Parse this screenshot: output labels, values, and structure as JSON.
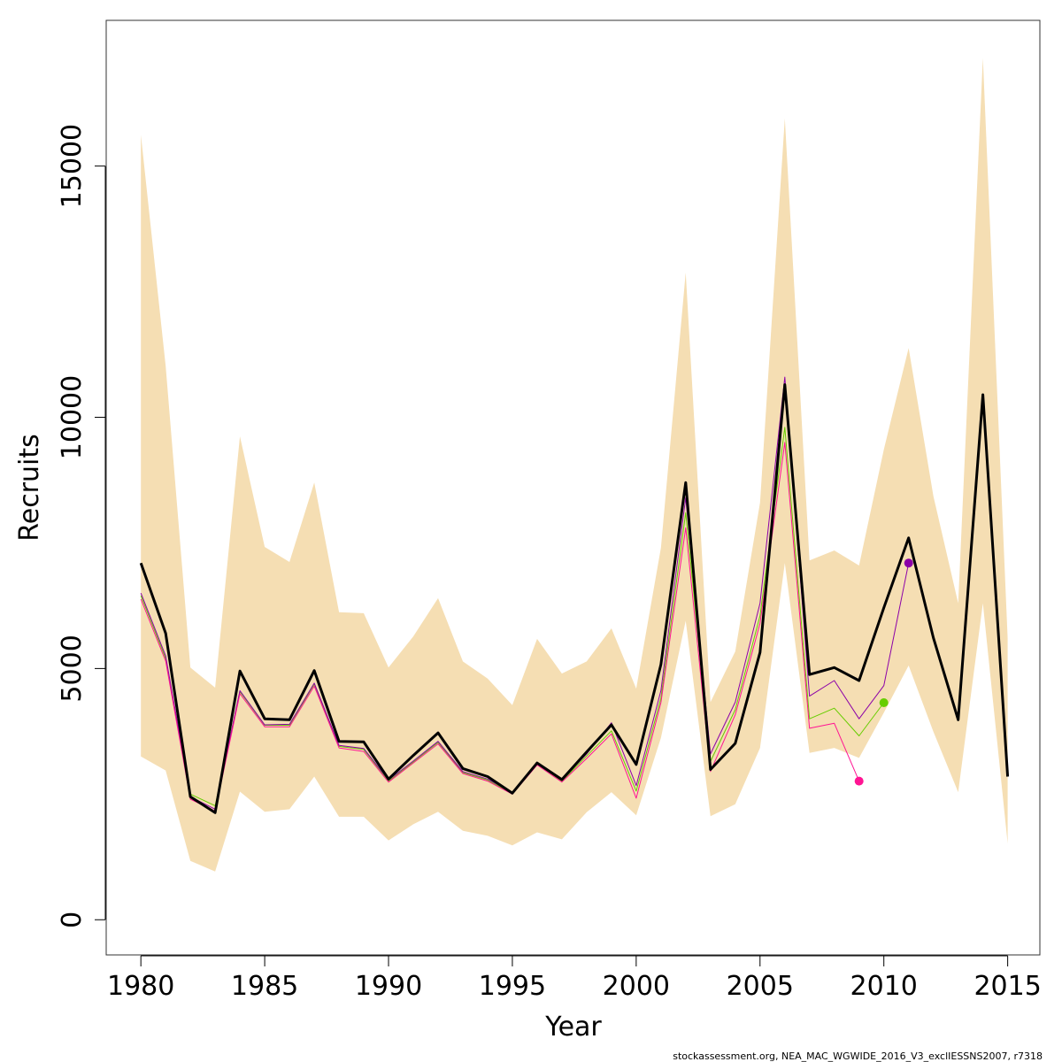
{
  "chart_data": {
    "type": "line",
    "xlabel": "Year",
    "ylabel": "Recruits",
    "xlim": [
      1978.6,
      2016.3
    ],
    "ylim": [
      -700,
      17900
    ],
    "x_ticks": [
      1980,
      1985,
      1990,
      1995,
      2000,
      2005,
      2010,
      2015
    ],
    "x_tick_labels": [
      "1980",
      "1985",
      "1990",
      "1995",
      "2000",
      "2005",
      "2010",
      "2015"
    ],
    "y_ticks": [
      0,
      5000,
      10000,
      15000
    ],
    "y_tick_labels": [
      "0",
      "5000",
      "10000",
      "15000"
    ],
    "colors": {
      "band": "#f5deb3",
      "main": "#000000",
      "retro_2009": "#ff1493",
      "retro_2010": "#66cd00",
      "retro_2011": "#8b00a8"
    },
    "confidence_band": {
      "x": [
        1980,
        1981,
        1982,
        1983,
        1984,
        1985,
        1986,
        1987,
        1988,
        1989,
        1990,
        1991,
        1992,
        1993,
        1994,
        1995,
        1996,
        1997,
        1998,
        1999,
        2000,
        2001,
        2002,
        2003,
        2004,
        2005,
        2006,
        2007,
        2008,
        2009,
        2010,
        2011,
        2012,
        2013,
        2014,
        2015
      ],
      "lower": [
        3250,
        2970,
        1170,
        960,
        2550,
        2150,
        2200,
        2850,
        2050,
        2050,
        1580,
        1900,
        2150,
        1770,
        1670,
        1480,
        1740,
        1600,
        2140,
        2540,
        2080,
        3620,
        5950,
        2060,
        2300,
        3420,
        7100,
        3320,
        3420,
        3220,
        4120,
        5060,
        3740,
        2540,
        6300,
        1520
      ],
      "upper": [
        15620,
        11020,
        5020,
        4620,
        9620,
        7420,
        7120,
        8700,
        6120,
        6100,
        5020,
        5640,
        6400,
        5140,
        4800,
        4270,
        5590,
        4900,
        5140,
        5800,
        4600,
        7400,
        12880,
        4330,
        5340,
        8300,
        15950,
        7150,
        7350,
        7050,
        9360,
        11380,
        8430,
        6300,
        17150,
        5600
      ]
    },
    "series": [
      {
        "key": "main",
        "x": [
          1980,
          1981,
          1982,
          1983,
          1984,
          1985,
          1986,
          1987,
          1988,
          1989,
          1990,
          1991,
          1992,
          1993,
          1994,
          1995,
          1996,
          1997,
          1998,
          1999,
          2000,
          2001,
          2002,
          2003,
          2004,
          2005,
          2006,
          2007,
          2008,
          2009,
          2010,
          2011,
          2012,
          2013,
          2014,
          2015
        ],
        "values": [
          7100,
          5700,
          2450,
          2130,
          4950,
          4000,
          3980,
          4960,
          3550,
          3540,
          2800,
          3270,
          3720,
          3010,
          2850,
          2520,
          3120,
          2790,
          3340,
          3880,
          3090,
          5080,
          8700,
          2990,
          3510,
          5320,
          10650,
          4880,
          5020,
          4760,
          6210,
          7600,
          5610,
          3980,
          10450,
          2850
        ]
      },
      {
        "key": "retro_2009",
        "x": [
          1980,
          1981,
          1982,
          1983,
          1984,
          1985,
          1986,
          1987,
          1988,
          1989,
          1990,
          1991,
          1992,
          1993,
          1994,
          1995,
          1996,
          1997,
          1998,
          1999,
          2000,
          2001,
          2002,
          2003,
          2004,
          2005,
          2006,
          2007,
          2008,
          2009
        ],
        "values": [
          6380,
          5150,
          2400,
          2160,
          4500,
          3840,
          3840,
          4650,
          3420,
          3350,
          2740,
          3120,
          3500,
          2910,
          2760,
          2500,
          3080,
          2740,
          3210,
          3700,
          2420,
          4320,
          7800,
          2950,
          4080,
          5900,
          9500,
          3810,
          3910,
          2760
        ]
      },
      {
        "key": "retro_2010",
        "x": [
          1980,
          1981,
          1982,
          1983,
          1984,
          1985,
          1986,
          1987,
          1988,
          1989,
          1990,
          1991,
          1992,
          1993,
          1994,
          1995,
          1996,
          1997,
          1998,
          1999,
          2000,
          2001,
          2002,
          2003,
          2004,
          2005,
          2006,
          2007,
          2008,
          2009,
          2010
        ],
        "values": [
          6450,
          5200,
          2500,
          2270,
          4540,
          3870,
          3870,
          4690,
          3450,
          3390,
          2760,
          3140,
          3530,
          2930,
          2780,
          2510,
          3090,
          2760,
          3260,
          3760,
          2560,
          4410,
          8100,
          3150,
          4180,
          6050,
          9800,
          4000,
          4210,
          3660,
          4320
        ]
      },
      {
        "key": "retro_2011",
        "x": [
          1980,
          1981,
          1982,
          1983,
          1984,
          1985,
          1986,
          1987,
          1988,
          1989,
          1990,
          1991,
          1992,
          1993,
          1994,
          1995,
          1996,
          1997,
          1998,
          1999,
          2000,
          2001,
          2002,
          2003,
          2004,
          2005,
          2006,
          2007,
          2008,
          2009,
          2010,
          2011
        ],
        "values": [
          6500,
          5250,
          2450,
          2200,
          4560,
          3880,
          3890,
          4710,
          3470,
          3410,
          2780,
          3160,
          3550,
          2950,
          2800,
          2530,
          3100,
          2780,
          3300,
          3920,
          2670,
          4560,
          8400,
          3300,
          4330,
          6300,
          10800,
          4450,
          4760,
          4000,
          4660,
          7100
        ]
      }
    ],
    "terminal_points": [
      {
        "series": "retro_2009",
        "x": 2009,
        "y": 2760
      },
      {
        "series": "retro_2010",
        "x": 2010,
        "y": 4320
      },
      {
        "series": "retro_2011",
        "x": 2011,
        "y": 7100
      }
    ],
    "footer_note": "stockassessment.org, NEA_MAC_WGWIDE_2016_V3_exclIESSNS2007, r7318"
  }
}
